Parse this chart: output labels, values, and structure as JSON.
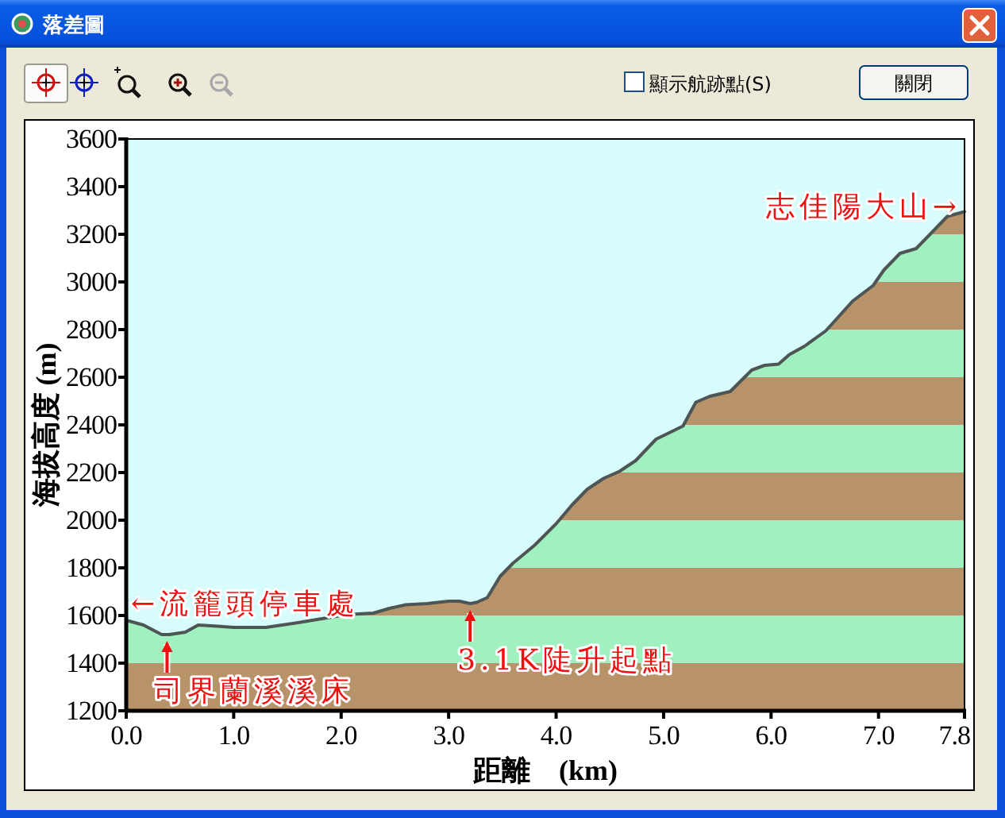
{
  "chart_data": {
    "type": "area",
    "title": "落差圖",
    "xlabel": "距離　(km)",
    "ylabel": "海拔高度 (m)",
    "x": [
      0,
      0.16,
      0.33,
      0.4,
      0.55,
      0.67,
      0.85,
      1.0,
      1.3,
      1.6,
      1.8,
      2.0,
      2.1,
      2.3,
      2.45,
      2.6,
      2.8,
      3.0,
      3.1,
      3.2,
      3.26,
      3.36,
      3.48,
      3.6,
      3.8,
      4.0,
      4.15,
      4.29,
      4.44,
      4.59,
      4.74,
      4.93,
      5.18,
      5.3,
      5.43,
      5.62,
      5.82,
      5.94,
      6.07,
      6.17,
      6.31,
      6.51,
      6.76,
      6.95,
      7.05,
      7.2,
      7.35,
      7.49,
      7.64,
      7.8
    ],
    "series": [
      {
        "color": "#4d5555",
        "values": [
          1580,
          1560,
          1520,
          1520,
          1530,
          1560,
          1555,
          1550,
          1550,
          1570,
          1585,
          1600,
          1605,
          1610,
          1630,
          1645,
          1650,
          1660,
          1660,
          1650,
          1655,
          1675,
          1765,
          1820,
          1895,
          1985,
          2065,
          2130,
          2175,
          2205,
          2250,
          2340,
          2395,
          2495,
          2520,
          2540,
          2630,
          2650,
          2655,
          2695,
          2730,
          2795,
          2920,
          2985,
          3050,
          3120,
          3140,
          3205,
          3275,
          3295
        ]
      }
    ],
    "xlim": [
      0,
      7.8
    ],
    "ylim": [
      1200,
      3600
    ],
    "xticks": [
      {
        "value": 0,
        "label": "0.0"
      },
      {
        "value": 1,
        "label": "1.0"
      },
      {
        "value": 2,
        "label": "2.0"
      },
      {
        "value": 3,
        "label": "3.0"
      },
      {
        "value": 4,
        "label": "4.0"
      },
      {
        "value": 5,
        "label": "5.0"
      },
      {
        "value": 6,
        "label": "6.0"
      },
      {
        "value": 7,
        "label": "7.0"
      },
      7.8
    ],
    "yticks": [
      1200,
      1400,
      1600,
      1800,
      2000,
      2200,
      2400,
      2600,
      2800,
      3000,
      3200,
      3400,
      3600
    ],
    "bands": [
      {
        "axis": "y",
        "from": 1200,
        "to": 1400,
        "color": "#b89268"
      },
      {
        "axis": "y",
        "from": 1400,
        "to": 1600,
        "color": "#a0f0c0"
      },
      {
        "axis": "y",
        "from": 1600,
        "to": 1800,
        "color": "#b89268"
      },
      {
        "axis": "y",
        "from": 1800,
        "to": 2000,
        "color": "#a0f0c0"
      },
      {
        "axis": "y",
        "from": 2000,
        "to": 2200,
        "color": "#b89268"
      },
      {
        "axis": "y",
        "from": 2200,
        "to": 2400,
        "color": "#a0f0c0"
      },
      {
        "axis": "y",
        "from": 2400,
        "to": 2600,
        "color": "#b89268"
      },
      {
        "axis": "y",
        "from": 2600,
        "to": 2800,
        "color": "#a0f0c0"
      },
      {
        "axis": "y",
        "from": 2800,
        "to": 3000,
        "color": "#b89268"
      },
      {
        "axis": "y",
        "from": 3000,
        "to": 3200,
        "color": "#a0f0c0"
      },
      {
        "axis": "y",
        "from": 3200,
        "to": 3400,
        "color": "#b89268"
      }
    ],
    "annotations": [
      {
        "text": "←流籠頭停車處",
        "x": 0,
        "y": 1580
      },
      {
        "text": "司界蘭溪溪床",
        "x": 0.38,
        "y": 1520
      },
      {
        "text": "3.1K陡升起點",
        "x": 3.2,
        "y": 1650
      },
      {
        "text": "志佳陽大山→",
        "x": 7.8,
        "y": 3295
      },
      "顯示航跡點(S)",
      "關閉"
    ]
  }
}
